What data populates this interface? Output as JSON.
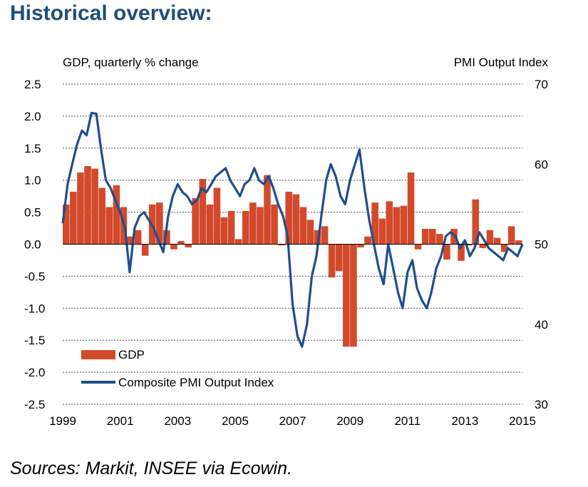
{
  "page": {
    "title": "Historical overview:",
    "source": "Sources: Markit, INSEE via Ecowin."
  },
  "chart_data": {
    "type": "bar",
    "title": "",
    "left_axis": {
      "label": "GDP, quarterly % change",
      "ylim": [
        -2.5,
        2.5
      ],
      "ticks": [
        "2.5",
        "2.0",
        "1.5",
        "1.0",
        "0.5",
        "0.0",
        "-0.5",
        "-1.0",
        "-1.5",
        "-2.0",
        "-2.5"
      ],
      "tick_values": [
        2.5,
        2.0,
        1.5,
        1.0,
        0.5,
        0.0,
        -0.5,
        -1.0,
        -1.5,
        -2.0,
        -2.5
      ]
    },
    "right_axis": {
      "label": "PMI Output Index",
      "ylim": [
        30,
        70
      ],
      "ticks": [
        "70",
        "60",
        "50",
        "40",
        "30"
      ],
      "tick_values": [
        70,
        60,
        50,
        40,
        30
      ]
    },
    "x_axis": {
      "xlim": [
        1999,
        2015
      ],
      "ticks": [
        "1999",
        "2001",
        "2003",
        "2005",
        "2007",
        "2009",
        "2011",
        "2013",
        "2015"
      ],
      "tick_values": [
        1999,
        2001,
        2003,
        2005,
        2007,
        2009,
        2011,
        2013,
        2015
      ]
    },
    "grid": true,
    "legend": {
      "placement": "bottom-left",
      "entries": [
        {
          "label": "GDP",
          "color": "#d24a2b",
          "kind": "bar"
        },
        {
          "label": "Composite PMI Output Index",
          "color": "#1f4e8c",
          "kind": "line"
        }
      ]
    },
    "series": [
      {
        "name": "GDP",
        "color": "#d24a2b",
        "kind": "bar",
        "axis": "left",
        "x": [
          1999.0,
          1999.25,
          1999.5,
          1999.75,
          2000.0,
          2000.25,
          2000.5,
          2000.75,
          2001.0,
          2001.25,
          2001.5,
          2001.75,
          2002.0,
          2002.25,
          2002.5,
          2002.75,
          2003.0,
          2003.25,
          2003.5,
          2003.75,
          2004.0,
          2004.25,
          2004.5,
          2004.75,
          2005.0,
          2005.25,
          2005.5,
          2005.75,
          2006.0,
          2006.25,
          2006.5,
          2006.75,
          2007.0,
          2007.25,
          2007.5,
          2007.75,
          2008.0,
          2008.25,
          2008.5,
          2008.75,
          2009.0,
          2009.25,
          2009.5,
          2009.75,
          2010.0,
          2010.25,
          2010.5,
          2010.75,
          2011.0,
          2011.25,
          2011.5,
          2011.75,
          2012.0,
          2012.25,
          2012.5,
          2012.75,
          2013.0,
          2013.25,
          2013.5,
          2013.75,
          2014.0,
          2014.25,
          2014.5,
          2014.75
        ],
        "values": [
          0.62,
          0.82,
          1.12,
          1.22,
          1.18,
          0.88,
          0.58,
          0.92,
          0.58,
          0.12,
          0.22,
          -0.18,
          0.62,
          0.65,
          0.22,
          -0.08,
          0.05,
          -0.05,
          0.72,
          1.02,
          0.62,
          0.88,
          0.42,
          0.52,
          0.08,
          0.52,
          0.65,
          0.58,
          1.08,
          0.62,
          -0.02,
          0.82,
          0.78,
          0.58,
          0.38,
          0.22,
          0.28,
          -0.52,
          -0.42,
          -1.6,
          -1.6,
          -0.05,
          0.12,
          0.65,
          0.4,
          0.67,
          0.58,
          0.6,
          1.12,
          -0.08,
          0.24,
          0.24,
          0.16,
          -0.24,
          0.24,
          -0.26,
          -0.02,
          0.7,
          -0.06,
          0.22,
          0.1,
          -0.12,
          0.28,
          0.06
        ]
      },
      {
        "name": "Composite PMI Output Index",
        "color": "#1f4e8c",
        "kind": "line",
        "axis": "right",
        "x": [
          1999.0,
          1999.17,
          1999.33,
          1999.5,
          1999.67,
          1999.83,
          2000.0,
          2000.17,
          2000.33,
          2000.5,
          2000.67,
          2000.83,
          2001.0,
          2001.17,
          2001.33,
          2001.5,
          2001.67,
          2001.83,
          2002.0,
          2002.17,
          2002.33,
          2002.5,
          2002.67,
          2002.83,
          2003.0,
          2003.17,
          2003.33,
          2003.5,
          2003.67,
          2003.83,
          2004.0,
          2004.17,
          2004.33,
          2004.5,
          2004.67,
          2004.83,
          2005.0,
          2005.17,
          2005.33,
          2005.5,
          2005.67,
          2005.83,
          2006.0,
          2006.17,
          2006.33,
          2006.5,
          2006.67,
          2006.83,
          2007.0,
          2007.17,
          2007.33,
          2007.5,
          2007.67,
          2007.83,
          2008.0,
          2008.17,
          2008.33,
          2008.5,
          2008.67,
          2008.83,
          2009.0,
          2009.17,
          2009.33,
          2009.5,
          2009.67,
          2009.83,
          2010.0,
          2010.17,
          2010.33,
          2010.5,
          2010.67,
          2010.83,
          2011.0,
          2011.17,
          2011.33,
          2011.5,
          2011.67,
          2011.83,
          2012.0,
          2012.17,
          2012.33,
          2012.5,
          2012.67,
          2012.83,
          2013.0,
          2013.17,
          2013.33,
          2013.5,
          2013.67,
          2013.83,
          2014.0,
          2014.17,
          2014.33,
          2014.5,
          2014.67,
          2014.83,
          2015.0
        ],
        "values": [
          52.6,
          57.5,
          60.0,
          62.5,
          64.2,
          63.6,
          66.4,
          66.3,
          62.0,
          58.0,
          57.0,
          55.5,
          54.0,
          52.0,
          46.5,
          52.0,
          53.5,
          54.0,
          53.0,
          52.0,
          50.5,
          49.0,
          53.5,
          56.0,
          57.5,
          56.5,
          56.0,
          55.0,
          55.5,
          57.0,
          56.5,
          57.5,
          58.5,
          59.0,
          59.5,
          58.0,
          57.0,
          56.0,
          57.5,
          58.0,
          59.5,
          58.0,
          57.5,
          58.5,
          57.0,
          55.0,
          53.5,
          51.0,
          42.5,
          38.5,
          37.2,
          40.0,
          46.0,
          48.5,
          53.5,
          58.0,
          60.0,
          58.5,
          56.0,
          55.0,
          58.0,
          60.0,
          61.8,
          57.0,
          53.0,
          50.0,
          47.0,
          45.0,
          50.0,
          47.0,
          44.0,
          42.0,
          46.5,
          48.0,
          44.5,
          43.0,
          42.0,
          44.0,
          47.0,
          48.5,
          51.0,
          51.5,
          51.0,
          49.5,
          50.5,
          48.5,
          49.5,
          51.5,
          50.5,
          49.5,
          49.0,
          48.5,
          48.0,
          49.5,
          49.0,
          48.5,
          50.0
        ]
      }
    ]
  }
}
